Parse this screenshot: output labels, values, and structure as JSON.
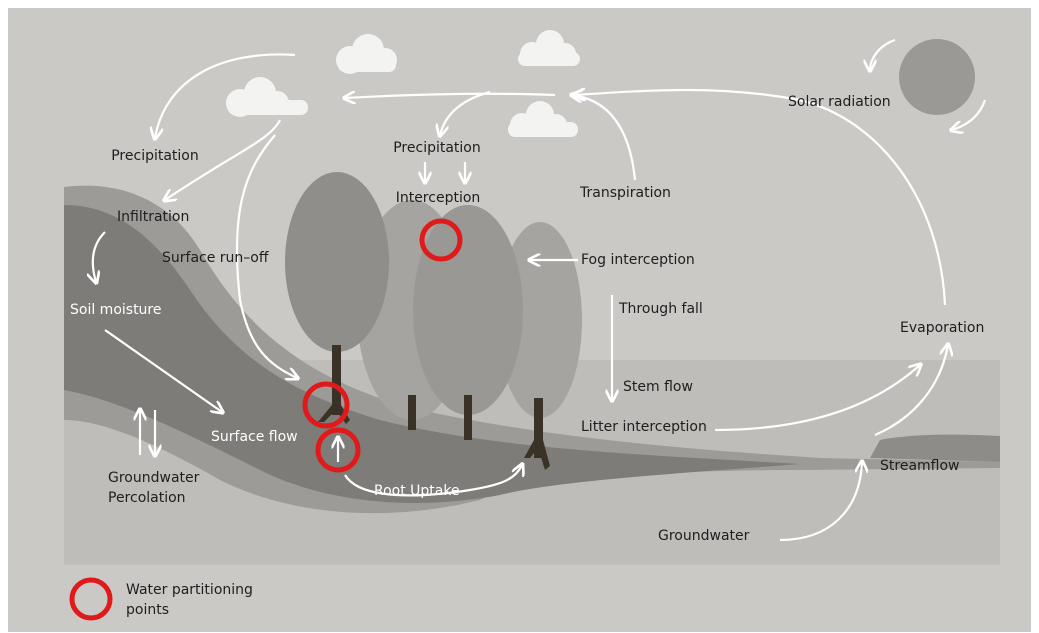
{
  "labels": {
    "precipitation_left": "Precipitation",
    "precipitation_center": "Precipitation",
    "interception": "Interception",
    "transpiration": "Transpiration",
    "solar_radiation": "Solar radiation",
    "infiltration": "Infiltration",
    "surface_runoff": "Surface run–off",
    "fog_interception": "Fog interception",
    "soil_moisture": "Soil moisture",
    "through_fall": "Through fall",
    "evaporation": "Evaporation",
    "stem_flow": "Stem flow",
    "litter_interception": "Litter interception",
    "surface_flow": "Surface flow",
    "streamflow": "Streamflow",
    "groundwater_percolation": [
      "Groundwater",
      "Percolation"
    ],
    "root_uptake": "Root Uptake",
    "groundwater": "Groundwater"
  },
  "legend": {
    "label": [
      "Water partitioning",
      "points"
    ]
  }
}
